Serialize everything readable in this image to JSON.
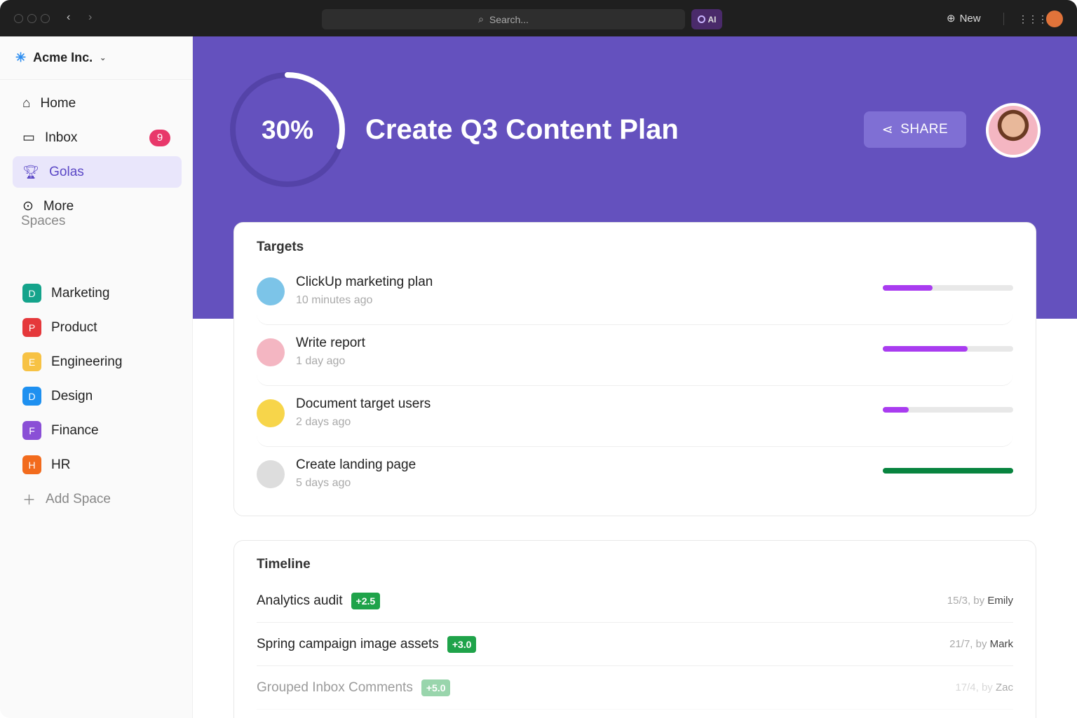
{
  "topbar": {
    "search_placeholder": "Search...",
    "ai_label": "AI",
    "new_label": "New"
  },
  "sidebar": {
    "workspace": "Acme Inc.",
    "items": [
      {
        "label": "Home",
        "icon": "home-icon"
      },
      {
        "label": "Inbox",
        "icon": "inbox-icon",
        "badge": "9"
      },
      {
        "label": "Golas",
        "icon": "trophy-icon",
        "active": true
      },
      {
        "label": "More",
        "icon": "more-icon"
      }
    ],
    "spaces_heading": "Spaces",
    "spaces": [
      {
        "letter": "D",
        "label": "Marketing",
        "color": "#14a38b"
      },
      {
        "letter": "P",
        "label": "Product",
        "color": "#e5383b"
      },
      {
        "letter": "E",
        "label": "Engineering",
        "color": "#f7c244"
      },
      {
        "letter": "D",
        "label": "Design",
        "color": "#1e90f0"
      },
      {
        "letter": "F",
        "label": "Finance",
        "color": "#8a4fd6"
      },
      {
        "letter": "H",
        "label": "HR",
        "color": "#f26b1d"
      }
    ],
    "add_space": "Add Space"
  },
  "goal": {
    "progress_label": "30%",
    "progress": 0.3,
    "title": "Create Q3 Content Plan",
    "share_label": "SHARE"
  },
  "targets": {
    "heading": "Targets",
    "items": [
      {
        "name": "ClickUp marketing plan",
        "time": "10 minutes ago",
        "progress": 38,
        "color": "#a93cf0"
      },
      {
        "name": "Write report",
        "time": "1 day ago",
        "progress": 65,
        "color": "#a93cf0"
      },
      {
        "name": "Document target users",
        "time": "2 days ago",
        "progress": 20,
        "color": "#a93cf0"
      },
      {
        "name": "Create landing page",
        "time": "5 days ago",
        "progress": 100,
        "color": "#08843f"
      }
    ]
  },
  "timeline": {
    "heading": "Timeline",
    "items": [
      {
        "name": "Analytics audit",
        "tag": "+2.5",
        "date": "15/3, by",
        "author": "Emily"
      },
      {
        "name": "Spring campaign image assets",
        "tag": "+3.0",
        "date": "21/7, by",
        "author": "Mark"
      },
      {
        "name": "Grouped Inbox Comments",
        "tag": "+5.0",
        "date": "17/4, by",
        "author": "Zac"
      }
    ]
  }
}
